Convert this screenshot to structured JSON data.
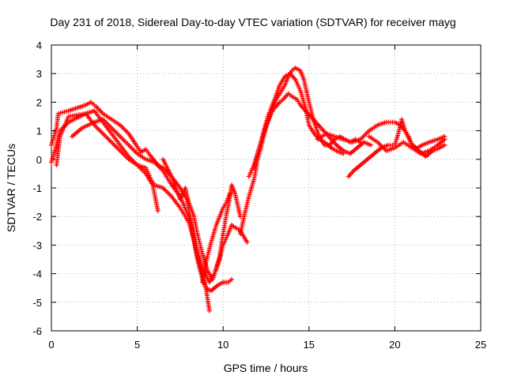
{
  "chart_data": {
    "type": "scatter",
    "title": "Day 231 of 2018, Sidereal Day-to-day VTEC variation (SDTVAR) for receiver mayg",
    "xlabel": "GPS time / hours",
    "ylabel": "SDTVAR / TECUs",
    "xlim": [
      0,
      25
    ],
    "ylim": [
      -6,
      4
    ],
    "xticks": [
      0,
      5,
      10,
      15,
      20,
      25
    ],
    "yticks": [
      -6,
      -5,
      -4,
      -3,
      -2,
      -1,
      0,
      1,
      2,
      3,
      4
    ],
    "grid": true,
    "marker": "+",
    "series": [
      {
        "name": "satellite-arcs",
        "color": "#ff0000",
        "tracks": [
          [
            [
              0.0,
              0.5
            ],
            [
              0.3,
              1.1
            ],
            [
              0.4,
              1.6
            ],
            [
              1.0,
              1.7
            ],
            [
              1.5,
              1.8
            ],
            [
              2.0,
              1.9
            ],
            [
              2.3,
              2.0
            ],
            [
              2.6,
              1.85
            ],
            [
              3.0,
              1.6
            ],
            [
              3.5,
              1.4
            ],
            [
              4.0,
              1.2
            ],
            [
              4.5,
              0.9
            ],
            [
              5.0,
              0.45
            ],
            [
              5.2,
              0.25
            ],
            [
              5.5,
              0.35
            ],
            [
              5.8,
              0.1
            ],
            [
              6.2,
              -0.2
            ],
            [
              6.5,
              -0.3
            ],
            [
              7.0,
              -0.6
            ],
            [
              7.5,
              -1.0
            ],
            [
              7.9,
              -1.4
            ],
            [
              8.2,
              -2.5
            ],
            [
              8.5,
              -3.5
            ],
            [
              8.8,
              -4.2
            ],
            [
              9.0,
              -4.5
            ],
            [
              9.3,
              -4.6
            ],
            [
              9.7,
              -4.4
            ],
            [
              10.0,
              -4.3
            ],
            [
              10.3,
              -4.3
            ],
            [
              10.5,
              -4.2
            ]
          ],
          [
            [
              0.0,
              -0.1
            ],
            [
              0.2,
              0.3
            ],
            [
              0.5,
              1.0
            ],
            [
              1.0,
              1.3
            ],
            [
              1.5,
              1.45
            ],
            [
              2.0,
              1.6
            ],
            [
              2.5,
              1.7
            ],
            [
              3.0,
              1.3
            ],
            [
              3.5,
              0.9
            ],
            [
              4.0,
              0.5
            ],
            [
              4.5,
              0.1
            ],
            [
              5.0,
              -0.2
            ],
            [
              5.5,
              -0.5
            ],
            [
              5.9,
              -0.9
            ],
            [
              6.2,
              -1.8
            ]
          ],
          [
            [
              0.3,
              -0.2
            ],
            [
              0.5,
              0.8
            ],
            [
              1.0,
              1.5
            ],
            [
              2.0,
              1.6
            ],
            [
              2.5,
              1.2
            ],
            [
              3.0,
              0.9
            ],
            [
              3.5,
              0.6
            ],
            [
              4.0,
              0.3
            ],
            [
              4.5,
              0.0
            ],
            [
              5.0,
              -0.2
            ],
            [
              5.5,
              -0.3
            ],
            [
              5.8,
              -0.7
            ],
            [
              6.0,
              -0.9
            ],
            [
              6.5,
              -1.0
            ],
            [
              7.0,
              -1.3
            ],
            [
              7.5,
              -1.7
            ],
            [
              8.0,
              -2.2
            ],
            [
              8.3,
              -2.8
            ],
            [
              8.6,
              -3.6
            ],
            [
              9.0,
              -4.5
            ],
            [
              9.2,
              -5.3
            ]
          ],
          [
            [
              1.2,
              0.8
            ],
            [
              1.8,
              1.1
            ],
            [
              2.5,
              1.3
            ],
            [
              3.0,
              1.4
            ],
            [
              3.5,
              1.1
            ],
            [
              4.0,
              0.8
            ],
            [
              4.5,
              0.5
            ],
            [
              5.0,
              0.2
            ],
            [
              5.5,
              0.0
            ],
            [
              6.0,
              -0.1
            ],
            [
              6.5,
              -0.4
            ],
            [
              7.0,
              -0.9
            ],
            [
              7.5,
              -1.3
            ],
            [
              8.0,
              -2.0
            ],
            [
              8.4,
              -3.0
            ],
            [
              8.8,
              -3.8
            ],
            [
              9.2,
              -4.3
            ],
            [
              9.5,
              -4.0
            ],
            [
              9.8,
              -3.5
            ],
            [
              10.0,
              -3.0
            ],
            [
              10.3,
              -2.6
            ],
            [
              10.5,
              -2.3
            ],
            [
              11.0,
              -2.5
            ],
            [
              11.4,
              -2.9
            ]
          ],
          [
            [
              6.5,
              0.0
            ],
            [
              7.0,
              -0.6
            ],
            [
              7.5,
              -1.4
            ],
            [
              7.8,
              -1.0
            ],
            [
              8.0,
              -1.5
            ],
            [
              8.3,
              -2.0
            ],
            [
              8.5,
              -2.6
            ],
            [
              8.8,
              -3.3
            ],
            [
              9.1,
              -3.9
            ],
            [
              9.4,
              -4.2
            ],
            [
              9.8,
              -3.4
            ],
            [
              10.0,
              -2.6
            ],
            [
              10.2,
              -1.9
            ],
            [
              10.4,
              -1.3
            ],
            [
              10.5,
              -0.9
            ],
            [
              10.7,
              -1.2
            ],
            [
              11.0,
              -2.0
            ]
          ],
          [
            [
              8.8,
              -4.3
            ],
            [
              9.0,
              -3.6
            ],
            [
              9.3,
              -2.9
            ],
            [
              9.6,
              -2.3
            ],
            [
              9.8,
              -2.0
            ],
            [
              10.0,
              -1.7
            ],
            [
              10.2,
              -1.5
            ],
            [
              10.4,
              -1.2
            ]
          ],
          [
            [
              11.0,
              -2.6
            ],
            [
              11.3,
              -1.8
            ],
            [
              11.5,
              -1.3
            ],
            [
              11.8,
              -0.7
            ],
            [
              11.9,
              -0.4
            ],
            [
              12.0,
              0.0
            ],
            [
              12.2,
              0.4
            ],
            [
              12.4,
              0.9
            ],
            [
              12.6,
              1.3
            ],
            [
              12.8,
              1.7
            ],
            [
              13.0,
              2.0
            ],
            [
              13.3,
              2.3
            ],
            [
              13.6,
              2.6
            ],
            [
              13.8,
              2.9
            ],
            [
              14.0,
              3.1
            ],
            [
              14.2,
              3.2
            ],
            [
              14.5,
              3.1
            ],
            [
              14.7,
              2.8
            ],
            [
              15.0,
              2.0
            ],
            [
              15.3,
              1.3
            ],
            [
              15.6,
              0.8
            ],
            [
              15.9,
              0.5
            ],
            [
              16.2,
              0.5
            ],
            [
              16.5,
              0.7
            ],
            [
              16.8,
              0.8
            ],
            [
              17.1,
              0.7
            ],
            [
              17.4,
              0.6
            ],
            [
              17.7,
              0.7
            ],
            [
              18.0,
              0.6
            ]
          ],
          [
            [
              11.5,
              -0.6
            ],
            [
              11.8,
              -0.2
            ],
            [
              12.0,
              0.2
            ],
            [
              12.3,
              0.8
            ],
            [
              12.5,
              1.2
            ],
            [
              12.8,
              1.6
            ],
            [
              13.0,
              1.8
            ],
            [
              13.3,
              2.0
            ],
            [
              13.5,
              2.1
            ],
            [
              13.8,
              2.3
            ],
            [
              14.0,
              2.2
            ],
            [
              14.3,
              2.1
            ],
            [
              14.5,
              1.9
            ],
            [
              14.8,
              1.7
            ],
            [
              15.1,
              1.5
            ],
            [
              15.4,
              1.3
            ],
            [
              15.7,
              1.1
            ],
            [
              16.0,
              0.9
            ],
            [
              16.3,
              0.7
            ],
            [
              16.6,
              0.5
            ],
            [
              17.0,
              0.3
            ],
            [
              17.4,
              0.2
            ],
            [
              17.8,
              0.4
            ],
            [
              18.2,
              0.6
            ],
            [
              18.6,
              0.5
            ]
          ],
          [
            [
              11.8,
              -0.3
            ],
            [
              12.2,
              0.6
            ],
            [
              12.6,
              1.5
            ],
            [
              13.0,
              2.1
            ],
            [
              13.3,
              2.6
            ],
            [
              13.6,
              2.9
            ],
            [
              13.9,
              3.0
            ],
            [
              14.2,
              2.8
            ],
            [
              14.5,
              2.4
            ],
            [
              14.8,
              1.8
            ],
            [
              15.0,
              1.2
            ],
            [
              15.3,
              0.9
            ],
            [
              15.6,
              0.7
            ],
            [
              15.9,
              0.6
            ],
            [
              16.3,
              0.4
            ],
            [
              16.6,
              0.3
            ],
            [
              17.0,
              0.2
            ]
          ],
          [
            [
              15.5,
              0.7
            ],
            [
              16.0,
              0.9
            ],
            [
              16.5,
              0.8
            ],
            [
              17.0,
              0.7
            ],
            [
              17.5,
              0.6
            ],
            [
              18.0,
              0.7
            ],
            [
              18.5,
              1.0
            ],
            [
              19.0,
              1.2
            ],
            [
              19.5,
              1.3
            ],
            [
              20.0,
              1.3
            ],
            [
              20.3,
              1.2
            ],
            [
              20.6,
              1.0
            ],
            [
              20.8,
              0.8
            ],
            [
              21.0,
              0.5
            ],
            [
              21.3,
              0.4
            ],
            [
              21.6,
              0.5
            ],
            [
              22.0,
              0.6
            ],
            [
              22.5,
              0.7
            ],
            [
              22.9,
              0.8
            ]
          ],
          [
            [
              17.3,
              -0.6
            ],
            [
              17.6,
              -0.4
            ],
            [
              18.0,
              -0.2
            ],
            [
              18.4,
              0.0
            ],
            [
              18.8,
              0.2
            ],
            [
              19.2,
              0.4
            ],
            [
              19.6,
              0.5
            ],
            [
              20.0,
              0.5
            ],
            [
              20.2,
              0.9
            ],
            [
              20.4,
              1.4
            ],
            [
              20.6,
              1.0
            ],
            [
              21.0,
              0.5
            ],
            [
              21.4,
              0.3
            ],
            [
              21.8,
              0.1
            ],
            [
              22.2,
              0.3
            ],
            [
              22.6,
              0.4
            ],
            [
              22.9,
              0.5
            ]
          ],
          [
            [
              18.5,
              0.8
            ],
            [
              19.0,
              0.6
            ],
            [
              19.5,
              0.3
            ],
            [
              20.0,
              0.4
            ],
            [
              20.5,
              0.6
            ],
            [
              21.0,
              0.4
            ],
            [
              21.5,
              0.2
            ],
            [
              22.0,
              0.3
            ],
            [
              22.5,
              0.5
            ],
            [
              22.9,
              0.7
            ]
          ]
        ]
      }
    ]
  }
}
